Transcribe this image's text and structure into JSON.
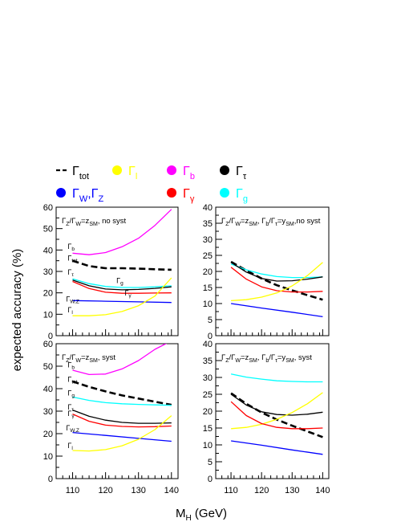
{
  "colors": {
    "tot": "#000000",
    "l": "#ffff00",
    "b": "#ff00ff",
    "tau": "#000000",
    "WZ": "#0000ff",
    "gamma": "#ff0000",
    "g": "#00ffff"
  },
  "legend": [
    {
      "key": "tot",
      "sym": "dash",
      "base": "Γ",
      "sub": "tot",
      "color": "#000000",
      "textColor": "#000000"
    },
    {
      "key": "l",
      "sym": "dot",
      "base": "Γ",
      "sub": "l",
      "color": "#ffff00",
      "textColor": "#ffff00"
    },
    {
      "key": "b",
      "sym": "dot",
      "base": "Γ",
      "sub": "b",
      "color": "#ff00ff",
      "textColor": "#ff00ff"
    },
    {
      "key": "tau",
      "sym": "dot",
      "base": "Γ",
      "sub": "τ",
      "color": "#000000",
      "textColor": "#000000"
    },
    {
      "key": "WZ",
      "sym": "dot",
      "base": "Γ",
      "sub": "W",
      "sep": ",",
      "base2": "Γ",
      "sub2": "Z",
      "color": "#0000ff",
      "textColor": "#0000ff"
    },
    {
      "key": "gamma",
      "sym": "dot",
      "base": "Γ",
      "sub": "γ",
      "color": "#ff0000",
      "textColor": "#ff0000"
    },
    {
      "key": "g",
      "sym": "dot",
      "base": "Γ",
      "sub": "g",
      "color": "#00ffff",
      "textColor": "#00ffff"
    }
  ],
  "axes": {
    "ylabel": "expected accuracy  (%)",
    "xlabel_base": "M",
    "xlabel_sub": "H",
    "xlabel_unit": " (GeV)",
    "x_ticks": [
      "110",
      "120",
      "130",
      "140"
    ]
  },
  "chart_data": [
    {
      "type": "line",
      "panel": "top-left",
      "annotation": {
        "parts": [
          [
            "Γ",
            ""
          ],
          [
            "Z",
            "sub"
          ],
          [
            "/Γ",
            ""
          ],
          [
            "W",
            "sub"
          ],
          [
            "=z",
            ""
          ],
          [
            "SM",
            "sub"
          ],
          [
            ", no syst",
            ""
          ]
        ]
      },
      "xlim": [
        105,
        142
      ],
      "ylim": [
        0,
        60
      ],
      "y_ticks": [
        "0",
        "10",
        "20",
        "30",
        "40",
        "50",
        "60"
      ],
      "series": [
        {
          "key": "b",
          "x": [
            110,
            115,
            120,
            125,
            130,
            135,
            140
          ],
          "y": [
            38.5,
            37.8,
            38.8,
            41.5,
            45.5,
            51.5,
            59.0
          ]
        },
        {
          "key": "tot",
          "dashed": true,
          "x": [
            110,
            115,
            120,
            125,
            130,
            135,
            140
          ],
          "y": [
            35.0,
            32.5,
            31.5,
            31.5,
            31.3,
            31.0,
            30.8
          ]
        },
        {
          "key": "g",
          "x": [
            110,
            115,
            120,
            125,
            130,
            135,
            140
          ],
          "y": [
            26.5,
            24.3,
            23.0,
            22.5,
            22.5,
            22.8,
            23.3
          ]
        },
        {
          "key": "tau",
          "x": [
            110,
            115,
            120,
            125,
            130,
            135,
            140
          ],
          "y": [
            26.0,
            23.3,
            21.8,
            21.4,
            21.6,
            22.1,
            22.8
          ]
        },
        {
          "key": "gamma",
          "x": [
            110,
            115,
            120,
            125,
            130,
            135,
            140
          ],
          "y": [
            25.3,
            22.0,
            20.3,
            19.8,
            19.8,
            19.9,
            20.0
          ]
        },
        {
          "key": "WZ",
          "x": [
            110,
            120,
            130,
            140
          ],
          "y": [
            16.4,
            16.1,
            15.8,
            15.5
          ]
        },
        {
          "key": "l",
          "x": [
            110,
            115,
            120,
            125,
            130,
            135,
            140
          ],
          "y": [
            9.3,
            9.3,
            9.8,
            11.3,
            14.0,
            18.5,
            27.0
          ]
        }
      ],
      "labels": [
        {
          "key": "b",
          "base": "Γ",
          "sub": "b",
          "x": 108.5,
          "y": 40.5
        },
        {
          "key": "tot",
          "base": "Γ",
          "sub": "tot",
          "x": 108.5,
          "y": 35.0
        },
        {
          "key": "tau",
          "base": "Γ",
          "sub": "τ",
          "x": 108.5,
          "y": 28.5
        },
        {
          "key": "g",
          "base": "Γ",
          "sub": "g",
          "x": 123.3,
          "y": 24.5
        },
        {
          "key": "gamma",
          "base": "Γ",
          "sub": "γ",
          "x": 125.8,
          "y": 18.8
        },
        {
          "key": "WZ",
          "base": "Γ",
          "sub": "W,Z",
          "x": 108.0,
          "y": 16.0
        },
        {
          "key": "l",
          "base": "Γ",
          "sub": "l",
          "x": 108.5,
          "y": 10.8
        }
      ]
    },
    {
      "type": "line",
      "panel": "top-right",
      "annotation": {
        "parts": [
          [
            "Γ",
            ""
          ],
          [
            "Z",
            "sub"
          ],
          [
            "/Γ",
            ""
          ],
          [
            "W",
            "sub"
          ],
          [
            "=z",
            ""
          ],
          [
            "SM",
            "sub"
          ],
          [
            ", Γ",
            ""
          ],
          [
            "b",
            "sub"
          ],
          [
            "/Γ",
            ""
          ],
          [
            "τ",
            "sub"
          ],
          [
            "=y",
            ""
          ],
          [
            "SM",
            "sub"
          ],
          [
            ",no syst",
            ""
          ]
        ]
      },
      "xlim": [
        105,
        142
      ],
      "ylim": [
        0,
        40
      ],
      "y_ticks": [
        "0",
        "5",
        "10",
        "15",
        "20",
        "25",
        "30",
        "35",
        "40"
      ],
      "series": [
        {
          "key": "tot",
          "dashed": true,
          "x": [
            110,
            115,
            120,
            125,
            130,
            135,
            140
          ],
          "y": [
            23.0,
            20.3,
            17.8,
            15.7,
            14.1,
            12.6,
            11.2
          ]
        },
        {
          "key": "g",
          "x": [
            110,
            115,
            120,
            125,
            130,
            135,
            140
          ],
          "y": [
            22.3,
            20.5,
            19.2,
            18.4,
            18.1,
            18.1,
            18.3
          ]
        },
        {
          "key": "tau",
          "x": [
            110,
            115,
            120,
            125,
            130,
            135,
            140
          ],
          "y": [
            22.8,
            19.8,
            17.8,
            17.0,
            17.1,
            17.6,
            18.3
          ]
        },
        {
          "key": "gamma",
          "x": [
            110,
            115,
            120,
            125,
            130,
            135,
            140
          ],
          "y": [
            21.3,
            17.6,
            15.2,
            14.0,
            13.6,
            13.6,
            13.8
          ]
        },
        {
          "key": "l",
          "x": [
            110,
            115,
            120,
            125,
            130,
            135,
            140
          ],
          "y": [
            10.9,
            11.2,
            12.0,
            13.3,
            15.5,
            18.7,
            22.8
          ]
        },
        {
          "key": "WZ",
          "x": [
            110,
            120,
            130,
            140
          ],
          "y": [
            10.0,
            8.6,
            7.3,
            5.9
          ]
        }
      ],
      "labels": []
    },
    {
      "type": "line",
      "panel": "bottom-left",
      "annotation": {
        "parts": [
          [
            "Γ",
            ""
          ],
          [
            "Z",
            "sub"
          ],
          [
            "/Γ",
            ""
          ],
          [
            "W",
            "sub"
          ],
          [
            "=z",
            ""
          ],
          [
            "SM",
            "sub"
          ],
          [
            ", syst",
            ""
          ]
        ]
      },
      "xlim": [
        105,
        142
      ],
      "ylim": [
        0,
        60
      ],
      "y_ticks": [
        "0",
        "10",
        "20",
        "30",
        "40",
        "50",
        "60"
      ],
      "series": [
        {
          "key": "b",
          "x": [
            110,
            115,
            120,
            125,
            130,
            135,
            139
          ],
          "y": [
            48.2,
            46.3,
            46.5,
            48.8,
            52.5,
            57.5,
            60.5
          ]
        },
        {
          "key": "tot",
          "dashed": true,
          "x": [
            110,
            115,
            120,
            125,
            130,
            135,
            140
          ],
          "y": [
            43.2,
            40.8,
            38.8,
            37.0,
            35.6,
            34.2,
            32.8
          ]
        },
        {
          "key": "g",
          "x": [
            110,
            115,
            120,
            125,
            130,
            135,
            140
          ],
          "y": [
            36.3,
            34.8,
            33.8,
            33.3,
            33.0,
            32.8,
            32.6
          ]
        },
        {
          "key": "tau",
          "x": [
            110,
            115,
            120,
            125,
            130,
            135,
            140
          ],
          "y": [
            30.5,
            27.7,
            26.0,
            25.0,
            24.6,
            24.6,
            24.8
          ]
        },
        {
          "key": "gamma",
          "x": [
            110,
            115,
            120,
            125,
            130,
            135,
            140
          ],
          "y": [
            28.7,
            25.5,
            23.8,
            23.2,
            23.0,
            23.1,
            23.4
          ]
        },
        {
          "key": "WZ",
          "x": [
            110,
            120,
            130,
            140
          ],
          "y": [
            20.5,
            19.2,
            17.9,
            16.6
          ]
        },
        {
          "key": "l",
          "x": [
            110,
            115,
            120,
            125,
            130,
            135,
            140
          ],
          "y": [
            12.5,
            12.3,
            12.9,
            14.6,
            17.5,
            21.8,
            28.0
          ]
        }
      ],
      "labels": [
        {
          "key": "b",
          "base": "Γ",
          "sub": "b",
          "x": 108.5,
          "y": 49.5
        },
        {
          "key": "tot",
          "base": "Γ",
          "sub": "tot",
          "x": 108.5,
          "y": 43.0
        },
        {
          "key": "g",
          "base": "Γ",
          "sub": "g",
          "x": 108.5,
          "y": 37.0
        },
        {
          "key": "tau",
          "base": "Γ",
          "sub": "τ",
          "x": 108.5,
          "y": 30.8
        },
        {
          "key": "gamma",
          "base": "Γ",
          "sub": "γ",
          "x": 108.5,
          "y": 27.8
        },
        {
          "key": "WZ",
          "base": "Γ",
          "sub": "W,Z",
          "x": 108.0,
          "y": 21.5
        },
        {
          "key": "l",
          "base": "Γ",
          "sub": "l",
          "x": 108.5,
          "y": 13.5
        }
      ]
    },
    {
      "type": "line",
      "panel": "bottom-right",
      "annotation": {
        "parts": [
          [
            "Γ",
            ""
          ],
          [
            "Z",
            "sub"
          ],
          [
            "/Γ",
            ""
          ],
          [
            "W",
            "sub"
          ],
          [
            "=z",
            ""
          ],
          [
            "SM",
            "sub"
          ],
          [
            ", Γ",
            ""
          ],
          [
            "b",
            "sub"
          ],
          [
            "/Γ",
            ""
          ],
          [
            "τ",
            "sub"
          ],
          [
            "=y",
            ""
          ],
          [
            "SM",
            "sub"
          ],
          [
            ", syst",
            ""
          ]
        ]
      },
      "xlim": [
        105,
        142
      ],
      "ylim": [
        0,
        40
      ],
      "y_ticks": [
        "0",
        "5",
        "10",
        "15",
        "20",
        "25",
        "30",
        "35",
        "40"
      ],
      "series": [
        {
          "key": "g",
          "x": [
            110,
            115,
            120,
            125,
            130,
            135,
            140
          ],
          "y": [
            31.0,
            30.1,
            29.5,
            29.0,
            28.8,
            28.7,
            28.7
          ]
        },
        {
          "key": "tot",
          "dashed": true,
          "x": [
            110,
            115,
            120,
            125,
            130,
            135,
            140
          ],
          "y": [
            25.3,
            22.2,
            19.6,
            17.5,
            15.7,
            14.0,
            12.3
          ]
        },
        {
          "key": "tau",
          "x": [
            110,
            115,
            120,
            125,
            130,
            135,
            140
          ],
          "y": [
            25.0,
            21.8,
            19.8,
            19.0,
            18.8,
            19.1,
            19.7
          ]
        },
        {
          "key": "l",
          "x": [
            110,
            115,
            120,
            125,
            130,
            135,
            140
          ],
          "y": [
            14.8,
            15.2,
            16.1,
            17.6,
            19.6,
            22.2,
            25.5
          ]
        },
        {
          "key": "gamma",
          "x": [
            110,
            115,
            120,
            125,
            130,
            135,
            140
          ],
          "y": [
            22.8,
            18.7,
            16.3,
            15.2,
            14.8,
            14.8,
            15.0
          ]
        },
        {
          "key": "WZ",
          "x": [
            110,
            120,
            130,
            140
          ],
          "y": [
            11.2,
            9.9,
            8.5,
            7.2
          ]
        }
      ],
      "labels": []
    }
  ]
}
